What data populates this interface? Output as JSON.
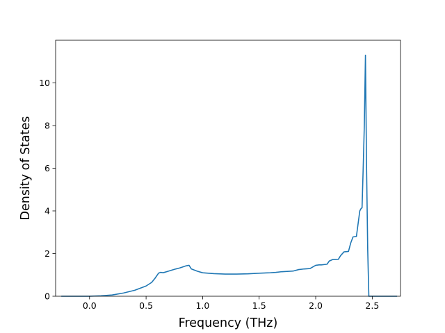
{
  "chart_data": {
    "type": "line",
    "title": "",
    "xlabel": "Frequency (THz)",
    "ylabel": "Density of States",
    "xlim": [
      -0.3,
      2.75
    ],
    "ylim": [
      0,
      12
    ],
    "x_ticks": [
      0.0,
      0.5,
      1.0,
      1.5,
      2.0,
      2.5
    ],
    "x_tick_labels": [
      "0.0",
      "0.5",
      "1.0",
      "1.5",
      "2.0",
      "2.5"
    ],
    "y_ticks": [
      0,
      2,
      4,
      6,
      8,
      10
    ],
    "y_tick_labels": [
      "0",
      "2",
      "4",
      "6",
      "8",
      "10"
    ],
    "grid": false,
    "legend": "none",
    "series": [
      {
        "color": "#1f77b4",
        "x": [
          -0.25,
          0.0,
          0.1,
          0.2,
          0.3,
          0.4,
          0.5,
          0.55,
          0.58,
          0.61,
          0.63,
          0.65,
          0.7,
          0.75,
          0.8,
          0.85,
          0.88,
          0.9,
          0.95,
          1.0,
          1.1,
          1.2,
          1.3,
          1.4,
          1.5,
          1.6,
          1.65,
          1.7,
          1.8,
          1.85,
          1.9,
          1.95,
          2.0,
          2.03,
          2.05,
          2.1,
          2.12,
          2.15,
          2.2,
          2.22,
          2.25,
          2.29,
          2.31,
          2.33,
          2.36,
          2.38,
          2.39,
          2.4,
          2.41,
          2.42,
          2.43,
          2.44,
          2.45,
          2.46,
          2.47,
          2.48,
          2.5,
          2.6,
          2.72
        ],
        "y": [
          0.0,
          0.0,
          0.02,
          0.06,
          0.15,
          0.28,
          0.48,
          0.65,
          0.85,
          1.08,
          1.12,
          1.1,
          1.18,
          1.26,
          1.33,
          1.42,
          1.45,
          1.28,
          1.18,
          1.1,
          1.06,
          1.04,
          1.04,
          1.05,
          1.08,
          1.1,
          1.12,
          1.15,
          1.18,
          1.25,
          1.28,
          1.3,
          1.45,
          1.47,
          1.47,
          1.5,
          1.65,
          1.72,
          1.73,
          1.9,
          2.08,
          2.1,
          2.5,
          2.78,
          2.8,
          3.6,
          4.0,
          4.1,
          4.15,
          6.0,
          8.0,
          11.3,
          6.0,
          2.2,
          0.0,
          0.0,
          0.0,
          0.0,
          0.0
        ]
      }
    ]
  }
}
